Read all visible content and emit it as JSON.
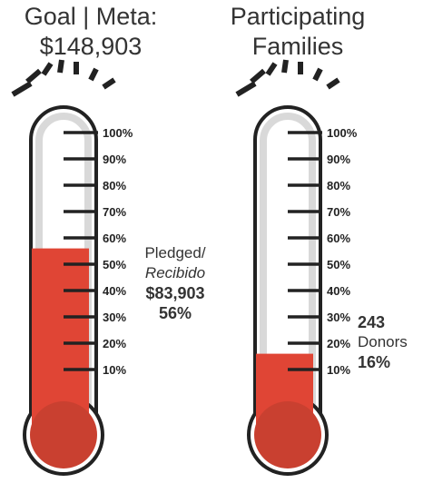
{
  "chart_data": [
    {
      "type": "thermometer",
      "title_lines": [
        "Goal | Meta:",
        "$148,903"
      ],
      "ticks": [
        "100%",
        "90%",
        "80%",
        "70%",
        "60%",
        "50%",
        "40%",
        "30%",
        "20%",
        "10%"
      ],
      "fill_percent": 56,
      "fill_color": "#e04535",
      "bulb_color": "#c94030",
      "labels": {
        "line1": "Pledged/",
        "line2": "Recibido",
        "amount": "$83,903",
        "percent": "56%"
      }
    },
    {
      "type": "thermometer",
      "title_lines": [
        "Participating",
        "Families"
      ],
      "ticks": [
        "100%",
        "90%",
        "80%",
        "70%",
        "60%",
        "50%",
        "40%",
        "30%",
        "20%",
        "10%"
      ],
      "fill_percent": 16,
      "fill_color": "#e04535",
      "bulb_color": "#c94030",
      "labels": {
        "count": "243",
        "count_label": "Donors",
        "percent": "16%"
      }
    }
  ]
}
